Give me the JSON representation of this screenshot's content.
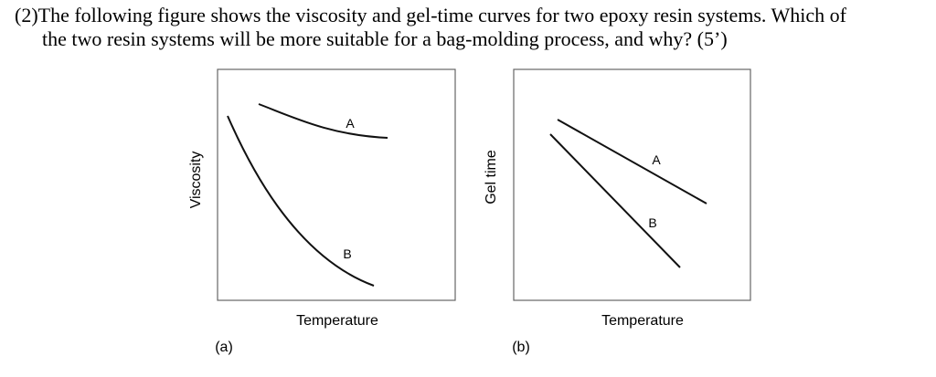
{
  "question": {
    "number": "(2)",
    "line1": "The following figure shows the viscosity and gel-time curves for two epoxy resin systems. Which of",
    "line2": "the two resin systems will be more suitable for a bag-molding process, and why? (5’)"
  },
  "figures": [
    {
      "panel_label": "(a)",
      "xlabel": "Temperature",
      "ylabel": "Viscosity",
      "curve_labels": [
        "A",
        "B"
      ]
    },
    {
      "panel_label": "(b)",
      "xlabel": "Temperature",
      "ylabel": "Gel time",
      "curve_labels": [
        "A",
        "B"
      ]
    }
  ],
  "chart_data": [
    {
      "type": "line",
      "title": "",
      "xlabel": "Temperature",
      "ylabel": "Viscosity",
      "panel": "(a)",
      "series": [
        {
          "name": "A",
          "shape": "gently decreasing curve, flattening at high temperature, stays high"
        },
        {
          "name": "B",
          "shape": "steeply decreasing curve, drops to low viscosity"
        }
      ]
    },
    {
      "type": "line",
      "title": "",
      "xlabel": "Temperature",
      "ylabel": "Gel time",
      "panel": "(b)",
      "series": [
        {
          "name": "A",
          "shape": "decreasing straight line, shallower slope"
        },
        {
          "name": "B",
          "shape": "decreasing straight line, steeper slope"
        }
      ]
    }
  ]
}
